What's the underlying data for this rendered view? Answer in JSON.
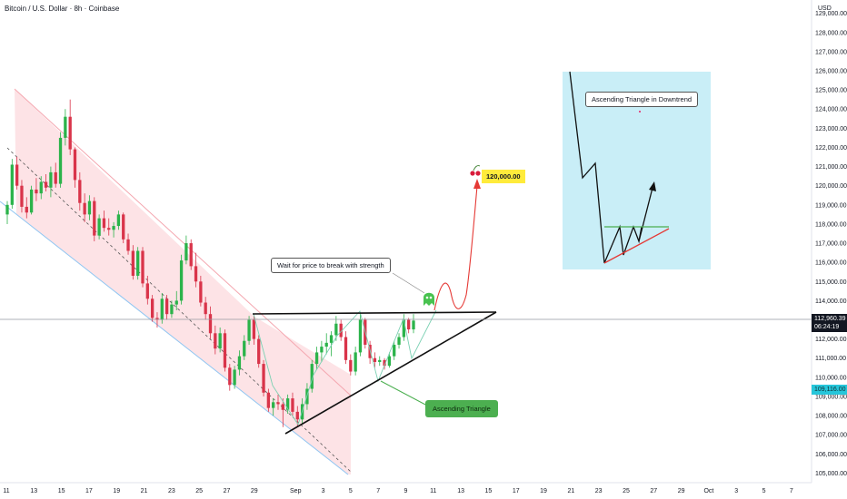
{
  "header": {
    "symbol_title": "Bitcoin / U.S. Dollar · 8h · Coinbase",
    "currency": "USD"
  },
  "colors": {
    "bull": "#2bb34a",
    "bear": "#d9344a",
    "channel_fill": "#fde3e6",
    "channel_top": "#f4a7b0",
    "channel_bottom": "#90c6f2",
    "inset_bg": "#c9eef7",
    "pattern_line": "#111111",
    "projection": "#e53935",
    "zigzag": "#7ad0b2"
  },
  "annotations": {
    "wait_note": "Wait for price to break with strength",
    "triangle_label": "Ascending Triangle",
    "target_label": "120,000.00",
    "inset_title": "Ascending Triangle in Downtrend"
  },
  "price_scale": {
    "current_price": "112,960.39",
    "countdown": "06:24:19",
    "low_marker": "109,116.00"
  },
  "chart_data": {
    "type": "candlestick",
    "title": "Bitcoin / U.S. Dollar · 8h · Coinbase",
    "ylabel": "USD",
    "ylim": [
      104500,
      129600
    ],
    "y_ticks": [
      105000,
      106000,
      107000,
      108000,
      109000,
      110000,
      111000,
      112000,
      113000,
      114000,
      115000,
      116000,
      117000,
      118000,
      119000,
      120000,
      121000,
      122000,
      123000,
      124000,
      125000,
      126000,
      127000,
      128000,
      129000
    ],
    "y_tick_labels": [
      "105,000.00",
      "106,000.00",
      "107,000.00",
      "108,000.00",
      "109,000.00",
      "110,000.00",
      "111,000.00",
      "112,000.00",
      "113,000.00",
      "114,000.00",
      "115,000.00",
      "116,000.00",
      "117,000.00",
      "118,000.00",
      "119,000.00",
      "120,000.00",
      "121,000.00",
      "122,000.00",
      "123,000.00",
      "124,000.00",
      "125,000.00",
      "126,000.00",
      "127,000.00",
      "128,000.00",
      "129,000.00"
    ],
    "x_ticks": [
      "11",
      "13",
      "15",
      "17",
      "19",
      "21",
      "23",
      "25",
      "27",
      "29",
      "Sep",
      "3",
      "5",
      "7",
      "9",
      "11",
      "13",
      "15",
      "17",
      "19",
      "21",
      "23",
      "25",
      "27",
      "29",
      "Oct",
      "3",
      "5",
      "7"
    ],
    "x_tick_days": [
      0,
      2,
      4,
      6,
      8,
      10,
      12,
      14,
      16,
      18,
      21,
      23,
      25,
      27,
      29,
      31,
      33,
      35,
      37,
      39,
      41,
      43,
      45,
      47,
      49,
      51,
      53,
      55,
      57
    ],
    "x_tick_dates": [
      "2025-08-11",
      "2025-08-13",
      "2025-08-15",
      "2025-08-17",
      "2025-08-19",
      "2025-08-21",
      "2025-08-23",
      "2025-08-25",
      "2025-08-27",
      "2025-08-29",
      "2025-09-01",
      "2025-09-03",
      "2025-09-05",
      "2025-09-07",
      "2025-09-09",
      "2025-09-11",
      "2025-09-13",
      "2025-09-15",
      "2025-09-17",
      "2025-09-19",
      "2025-09-21",
      "2025-09-23",
      "2025-09-25",
      "2025-09-27",
      "2025-09-29",
      "2025-10-01",
      "2025-10-03",
      "2025-10-05",
      "2025-10-07"
    ],
    "x_range_days": [
      0,
      58
    ],
    "current_price": 112960.39,
    "marked_low": 109116.0,
    "target": 120000.0,
    "candles": [
      {
        "o": 118500,
        "h": 119200,
        "l": 118000,
        "c": 119000
      },
      {
        "o": 119000,
        "h": 121400,
        "l": 118800,
        "c": 121100
      },
      {
        "o": 121100,
        "h": 121500,
        "l": 119800,
        "c": 120000
      },
      {
        "o": 120000,
        "h": 120300,
        "l": 118600,
        "c": 118900
      },
      {
        "o": 118900,
        "h": 119400,
        "l": 118300,
        "c": 118600
      },
      {
        "o": 118600,
        "h": 120000,
        "l": 118500,
        "c": 119800
      },
      {
        "o": 119800,
        "h": 120400,
        "l": 119200,
        "c": 119600
      },
      {
        "o": 119600,
        "h": 120500,
        "l": 119300,
        "c": 120200
      },
      {
        "o": 120200,
        "h": 120600,
        "l": 119700,
        "c": 119900
      },
      {
        "o": 119900,
        "h": 121000,
        "l": 119400,
        "c": 120700
      },
      {
        "o": 120700,
        "h": 121200,
        "l": 119900,
        "c": 120100
      },
      {
        "o": 120100,
        "h": 122800,
        "l": 119900,
        "c": 122500
      },
      {
        "o": 122500,
        "h": 124000,
        "l": 122100,
        "c": 123600
      },
      {
        "o": 123600,
        "h": 124500,
        "l": 121600,
        "c": 121900
      },
      {
        "o": 121900,
        "h": 122000,
        "l": 119900,
        "c": 120300
      },
      {
        "o": 120300,
        "h": 120700,
        "l": 118700,
        "c": 119100
      },
      {
        "o": 119100,
        "h": 119600,
        "l": 118100,
        "c": 118500
      },
      {
        "o": 118500,
        "h": 119500,
        "l": 118200,
        "c": 119200
      },
      {
        "o": 119200,
        "h": 119400,
        "l": 117100,
        "c": 117400
      },
      {
        "o": 117400,
        "h": 118500,
        "l": 117200,
        "c": 118300
      },
      {
        "o": 118300,
        "h": 118700,
        "l": 117600,
        "c": 117800
      },
      {
        "o": 117800,
        "h": 118300,
        "l": 117400,
        "c": 117700
      },
      {
        "o": 117700,
        "h": 118100,
        "l": 117300,
        "c": 117900
      },
      {
        "o": 117900,
        "h": 118700,
        "l": 117700,
        "c": 118500
      },
      {
        "o": 118500,
        "h": 118600,
        "l": 117000,
        "c": 117200
      },
      {
        "o": 117200,
        "h": 117500,
        "l": 116400,
        "c": 116600
      },
      {
        "o": 116600,
        "h": 116900,
        "l": 115100,
        "c": 115300
      },
      {
        "o": 115300,
        "h": 116800,
        "l": 115100,
        "c": 116600
      },
      {
        "o": 116600,
        "h": 116800,
        "l": 114700,
        "c": 114900
      },
      {
        "o": 114900,
        "h": 115300,
        "l": 113800,
        "c": 114100
      },
      {
        "o": 114100,
        "h": 114300,
        "l": 112900,
        "c": 113100
      },
      {
        "o": 113100,
        "h": 113400,
        "l": 112600,
        "c": 113000
      },
      {
        "o": 113000,
        "h": 114400,
        "l": 112800,
        "c": 114100
      },
      {
        "o": 114100,
        "h": 114300,
        "l": 113000,
        "c": 113300
      },
      {
        "o": 113300,
        "h": 114000,
        "l": 113100,
        "c": 113800
      },
      {
        "o": 113800,
        "h": 114500,
        "l": 113500,
        "c": 114000
      },
      {
        "o": 114000,
        "h": 116400,
        "l": 113800,
        "c": 116100
      },
      {
        "o": 116100,
        "h": 117400,
        "l": 115900,
        "c": 117000
      },
      {
        "o": 117000,
        "h": 117200,
        "l": 115600,
        "c": 115800
      },
      {
        "o": 115800,
        "h": 116500,
        "l": 114700,
        "c": 115000
      },
      {
        "o": 115000,
        "h": 115300,
        "l": 113700,
        "c": 113900
      },
      {
        "o": 113900,
        "h": 114200,
        "l": 113000,
        "c": 113300
      },
      {
        "o": 113300,
        "h": 113700,
        "l": 112000,
        "c": 112300
      },
      {
        "o": 112300,
        "h": 112700,
        "l": 111200,
        "c": 111500
      },
      {
        "o": 111500,
        "h": 112600,
        "l": 111300,
        "c": 112300
      },
      {
        "o": 112300,
        "h": 112500,
        "l": 110300,
        "c": 110500
      },
      {
        "o": 110500,
        "h": 110700,
        "l": 109300,
        "c": 109600
      },
      {
        "o": 109600,
        "h": 110600,
        "l": 109400,
        "c": 110400
      },
      {
        "o": 110400,
        "h": 111400,
        "l": 110100,
        "c": 111100
      },
      {
        "o": 111100,
        "h": 112200,
        "l": 110900,
        "c": 111900
      },
      {
        "o": 111900,
        "h": 113200,
        "l": 111700,
        "c": 113000
      },
      {
        "o": 113000,
        "h": 113300,
        "l": 111700,
        "c": 112000
      },
      {
        "o": 112000,
        "h": 112200,
        "l": 110500,
        "c": 110700
      },
      {
        "o": 110700,
        "h": 110900,
        "l": 109000,
        "c": 109200
      },
      {
        "o": 109200,
        "h": 109400,
        "l": 108200,
        "c": 108400
      },
      {
        "o": 108400,
        "h": 108900,
        "l": 108000,
        "c": 108700
      },
      {
        "o": 108700,
        "h": 109100,
        "l": 108300,
        "c": 108600
      },
      {
        "o": 108600,
        "h": 108900,
        "l": 107400,
        "c": 108300
      },
      {
        "o": 108300,
        "h": 109100,
        "l": 108100,
        "c": 108900
      },
      {
        "o": 108900,
        "h": 109200,
        "l": 108000,
        "c": 108200
      },
      {
        "o": 108200,
        "h": 108500,
        "l": 107400,
        "c": 107800
      },
      {
        "o": 107800,
        "h": 108900,
        "l": 107600,
        "c": 108600
      },
      {
        "o": 108600,
        "h": 109700,
        "l": 108300,
        "c": 109400
      },
      {
        "o": 109400,
        "h": 110900,
        "l": 109200,
        "c": 110700
      },
      {
        "o": 110700,
        "h": 111600,
        "l": 110400,
        "c": 111300
      },
      {
        "o": 111300,
        "h": 111900,
        "l": 110800,
        "c": 111600
      },
      {
        "o": 111600,
        "h": 112300,
        "l": 111200,
        "c": 111800
      },
      {
        "o": 111800,
        "h": 112400,
        "l": 111100,
        "c": 112200
      },
      {
        "o": 112200,
        "h": 113200,
        "l": 111900,
        "c": 112800
      },
      {
        "o": 112800,
        "h": 113000,
        "l": 111900,
        "c": 112100
      },
      {
        "o": 112100,
        "h": 112400,
        "l": 110700,
        "c": 110900
      },
      {
        "o": 110900,
        "h": 111200,
        "l": 110100,
        "c": 110300
      },
      {
        "o": 110300,
        "h": 111600,
        "l": 110100,
        "c": 111300
      },
      {
        "o": 111300,
        "h": 113300,
        "l": 111100,
        "c": 113000
      },
      {
        "o": 113000,
        "h": 113100,
        "l": 111500,
        "c": 111700
      },
      {
        "o": 111700,
        "h": 111900,
        "l": 110700,
        "c": 111000
      },
      {
        "o": 111000,
        "h": 111300,
        "l": 110500,
        "c": 110800
      },
      {
        "o": 110800,
        "h": 111100,
        "l": 110600,
        "c": 110900
      },
      {
        "o": 110900,
        "h": 111000,
        "l": 110400,
        "c": 110600
      },
      {
        "o": 110600,
        "h": 111300,
        "l": 110500,
        "c": 111100
      },
      {
        "o": 111100,
        "h": 111900,
        "l": 110900,
        "c": 111700
      },
      {
        "o": 111700,
        "h": 112300,
        "l": 111500,
        "c": 112100
      },
      {
        "o": 112100,
        "h": 113300,
        "l": 111900,
        "c": 113000
      },
      {
        "o": 113000,
        "h": 113100,
        "l": 112300,
        "c": 112500
      },
      {
        "o": 112500,
        "h": 113300,
        "l": 112300,
        "c": 112960
      }
    ]
  }
}
